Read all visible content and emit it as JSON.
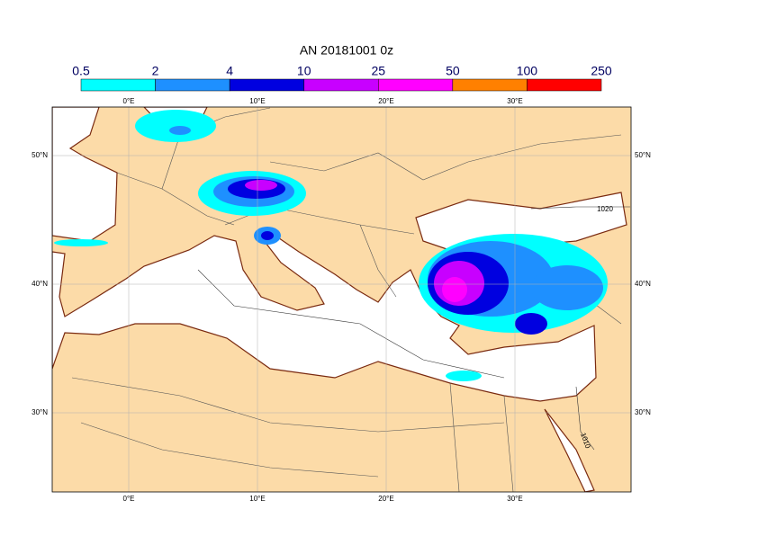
{
  "title": "AN  20181001 0z",
  "colorbar": {
    "labels": [
      "0.5",
      "2",
      "4",
      "10",
      "25",
      "50",
      "100",
      "250"
    ],
    "colors": [
      "#00ffff",
      "#1e90ff",
      "#0000e0",
      "#c800ff",
      "#ff00ff",
      "#ff8000",
      "#ff0000"
    ]
  },
  "longitude_labels": [
    "0°E",
    "10°E",
    "20°E",
    "30°E"
  ],
  "latitude_labels": [
    "50°N",
    "40°N",
    "30°N"
  ],
  "contour_labels": [
    "1020",
    "1010"
  ]
}
